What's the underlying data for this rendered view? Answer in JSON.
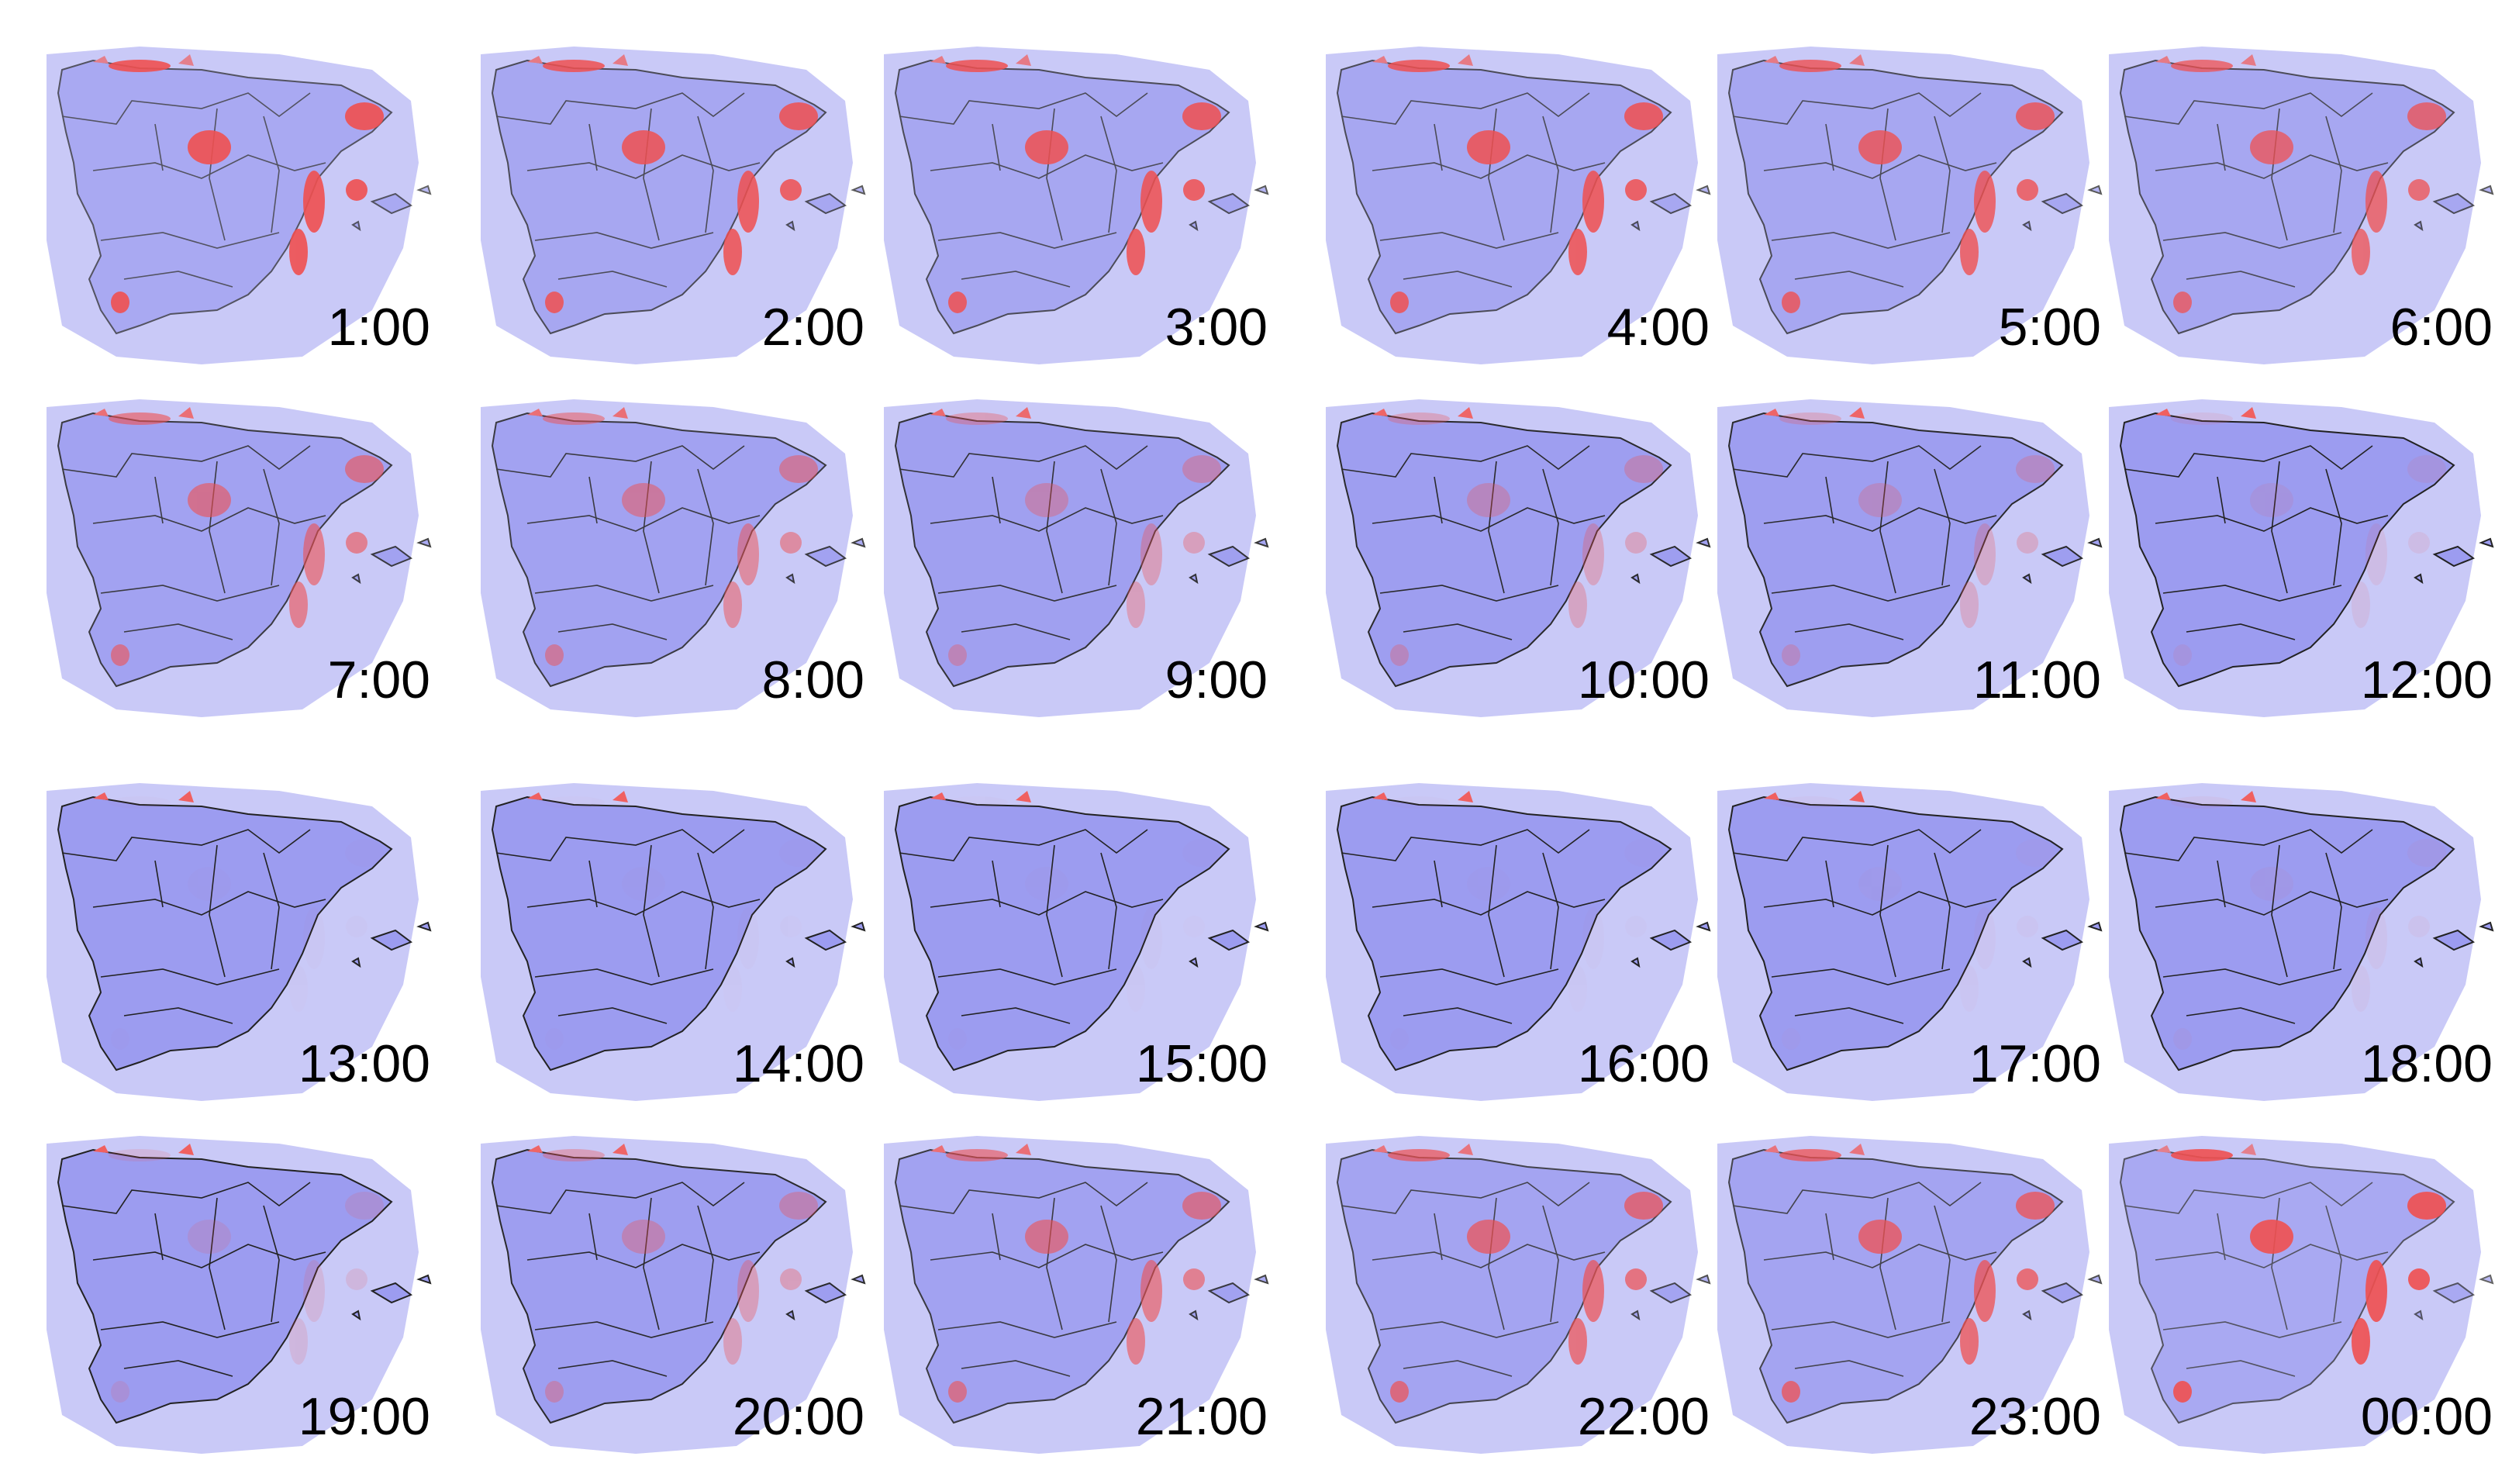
{
  "panels": [
    {
      "label": "1:00"
    },
    {
      "label": "2:00"
    },
    {
      "label": "3:00"
    },
    {
      "label": "4:00"
    },
    {
      "label": "5:00"
    },
    {
      "label": "6:00"
    },
    {
      "label": "7:00"
    },
    {
      "label": "8:00"
    },
    {
      "label": "9:00"
    },
    {
      "label": "10:00"
    },
    {
      "label": "11:00"
    },
    {
      "label": "12:00"
    },
    {
      "label": "13:00"
    },
    {
      "label": "14:00"
    },
    {
      "label": "15:00"
    },
    {
      "label": "16:00"
    },
    {
      "label": "17:00"
    },
    {
      "label": "18:00"
    },
    {
      "label": "19:00"
    },
    {
      "label": "20:00"
    },
    {
      "label": "21:00"
    },
    {
      "label": "22:00"
    },
    {
      "label": "23:00"
    },
    {
      "label": "00:00"
    }
  ]
}
